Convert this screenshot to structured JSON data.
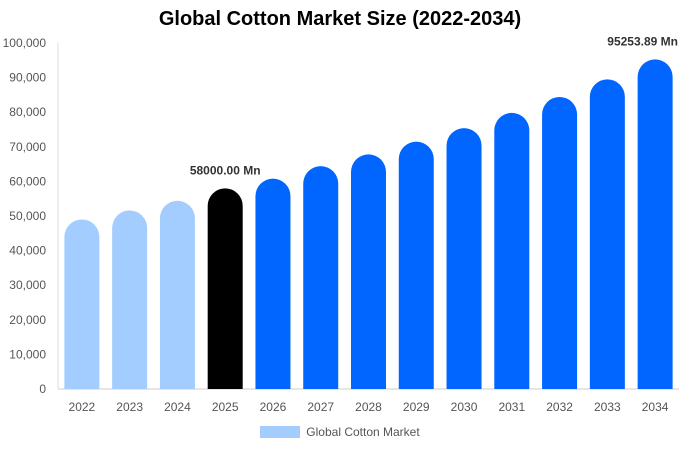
{
  "chart_data": {
    "type": "bar",
    "title": "Global Cotton Market Size (2022-2034)",
    "xlabel": "",
    "ylabel": "",
    "categories": [
      "2022",
      "2023",
      "2024",
      "2025",
      "2026",
      "2027",
      "2028",
      "2029",
      "2030",
      "2031",
      "2032",
      "2033",
      "2034"
    ],
    "series": [
      {
        "name": "Global Cotton Market",
        "values": [
          49000,
          51600,
          54400,
          58000,
          60800,
          64400,
          67800,
          71500,
          75400,
          79800,
          84400,
          89500,
          95253.89
        ]
      }
    ],
    "ylim": [
      0,
      100000
    ],
    "yticks": [
      "0",
      "10,000",
      "20,000",
      "30,000",
      "40,000",
      "50,000",
      "60,000",
      "70,000",
      "80,000",
      "90,000",
      "100,000"
    ],
    "data_labels": [
      {
        "category": "2025",
        "text": "58000.00 Mn"
      },
      {
        "category": "2034",
        "text": "95253.89 Mn"
      }
    ],
    "bar_colors": {
      "historical": "#a3cdff",
      "base_year": "#000000",
      "forecast": "#0066ff"
    },
    "legend_color": "#a3cdff",
    "grid": false,
    "legend_position": "bottom"
  }
}
